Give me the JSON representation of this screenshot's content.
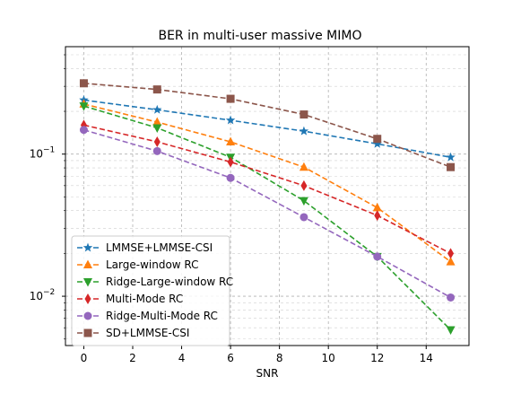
{
  "chart_data": {
    "type": "line",
    "title": "BER in multi-user massive MIMO",
    "xlabel": "SNR",
    "ylabel": "",
    "y_scale": "log",
    "xlim": [
      -0.75,
      15.75
    ],
    "ylim": [
      0.0045,
      0.57
    ],
    "grid": true,
    "legend_position": "lower-left",
    "x_ticks": [
      0,
      2,
      4,
      6,
      8,
      10,
      12,
      14
    ],
    "x_tick_labels": [
      "0",
      "2",
      "4",
      "6",
      "8",
      "10",
      "12",
      "14"
    ],
    "y_major_ticks": [
      0.01,
      0.1
    ],
    "y_tick_labels": [
      "10",
      "10"
    ],
    "y_tick_exponents": [
      "−2",
      "−1"
    ],
    "x": [
      0,
      3,
      6,
      9,
      12,
      15
    ],
    "series": [
      {
        "name": "LMMSE+LMMSE-CSI",
        "color": "#1f77b4",
        "marker": "star",
        "values": [
          0.24,
          0.205,
          0.173,
          0.145,
          0.118,
          0.095
        ]
      },
      {
        "name": "Large-window RC",
        "color": "#ff7f0e",
        "marker": "triangle-up",
        "values": [
          0.225,
          0.168,
          0.122,
          0.081,
          0.042,
          0.0175
        ]
      },
      {
        "name": "Ridge-Large-window RC",
        "color": "#2ca02c",
        "marker": "triangle-down",
        "values": [
          0.218,
          0.153,
          0.095,
          0.047,
          0.019,
          0.0058
        ]
      },
      {
        "name": "Multi-Mode RC",
        "color": "#d62728",
        "marker": "diamond",
        "values": [
          0.16,
          0.122,
          0.088,
          0.06,
          0.037,
          0.02
        ]
      },
      {
        "name": "Ridge-Multi-Mode RC",
        "color": "#9467bd",
        "marker": "circle",
        "values": [
          0.148,
          0.105,
          0.068,
          0.036,
          0.019,
          0.0098
        ]
      },
      {
        "name": "SD+LMMSE-CSI",
        "color": "#8c564b",
        "marker": "square",
        "values": [
          0.315,
          0.285,
          0.245,
          0.19,
          0.128,
          0.081
        ]
      }
    ]
  }
}
